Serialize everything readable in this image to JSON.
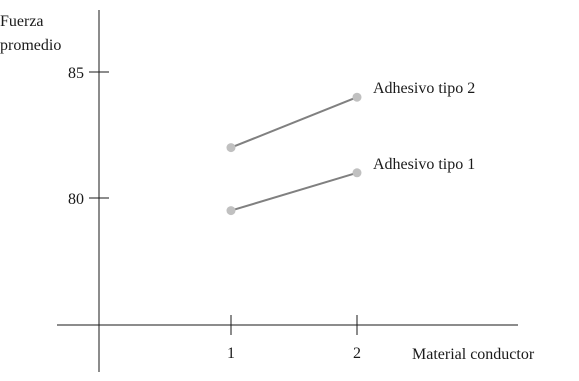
{
  "chart_data": {
    "type": "line",
    "title": "",
    "ylabel_lines": [
      "Fuerza",
      "promedio"
    ],
    "xlabel": "Material conductor",
    "x": [
      1,
      2
    ],
    "x_tick_labels": [
      "1",
      "2"
    ],
    "y_ticks": [
      80,
      85
    ],
    "y_tick_labels": [
      "80",
      "85"
    ],
    "xlim": [
      0,
      3.3
    ],
    "ylim": [
      75,
      87.5
    ],
    "grid": false,
    "legend": "inline labels at right end of each line",
    "series": [
      {
        "name": "Adhesivo tipo 2",
        "values": [
          82,
          84
        ],
        "line_color": "#808080",
        "marker_color": "#c0c0c0"
      },
      {
        "name": "Adhesivo tipo 1",
        "values": [
          79.5,
          81
        ],
        "line_color": "#808080",
        "marker_color": "#c0c0c0"
      }
    ]
  }
}
